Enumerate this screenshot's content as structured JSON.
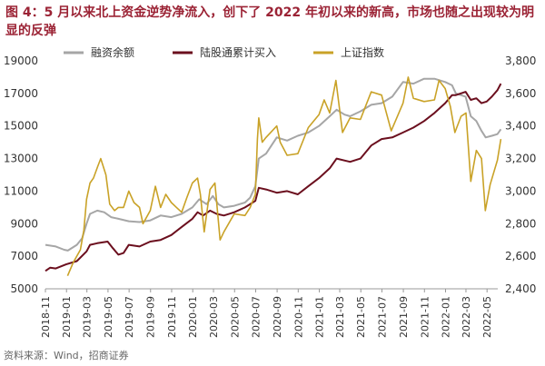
{
  "figure": {
    "title": "图 4：5 月以来北上资金逆势净流入，创下了 2022 年初以来的新高，市场也随之出现较为明显的反弹",
    "source": "资料来源：Wind，招商证券"
  },
  "chart_data": {
    "type": "line",
    "title": "图 4：5 月以来北上资金逆势净流入，创下了 2022 年初以来的新高，市场也随之出现较为明显的反弹",
    "xlabel": "",
    "ylabel": "",
    "x_ticks": [
      "2018-11",
      "2019-01",
      "2019-03",
      "2019-05",
      "2019-07",
      "2019-09",
      "2019-11",
      "2020-01",
      "2020-03",
      "2020-05",
      "2020-07",
      "2020-09",
      "2020-11",
      "2021-01",
      "2021-03",
      "2021-05",
      "2021-07",
      "2021-09",
      "2021-11",
      "2022-01",
      "2022-03",
      "2022-05"
    ],
    "x_range": [
      "2018-11",
      "2022-06"
    ],
    "y_left": {
      "range": [
        5000,
        19000
      ],
      "ticks": [
        5000,
        7000,
        9000,
        11000,
        13000,
        15000,
        17000,
        19000
      ]
    },
    "y_right": {
      "range": [
        2400,
        3800
      ],
      "ticks": [
        "2,400",
        "2,600",
        "2,800",
        "3,000",
        "3,200",
        "3,400",
        "3,600",
        "3,800"
      ],
      "tick_values": [
        2400,
        2600,
        2800,
        3000,
        3200,
        3400,
        3600,
        3800
      ]
    },
    "legend_position": "top",
    "grid": false,
    "series": [
      {
        "name": "融资余额",
        "axis": "left",
        "color": "#a6a6a6",
        "points": [
          [
            "2018-11-01",
            7700
          ],
          [
            "2018-12-01",
            7600
          ],
          [
            "2018-12-25",
            7400
          ],
          [
            "2019-01-05",
            7350
          ],
          [
            "2019-01-31",
            7700
          ],
          [
            "2019-02-15",
            8100
          ],
          [
            "2019-02-28",
            9000
          ],
          [
            "2019-03-10",
            9600
          ],
          [
            "2019-03-31",
            9800
          ],
          [
            "2019-04-20",
            9700
          ],
          [
            "2019-05-10",
            9400
          ],
          [
            "2019-05-31",
            9300
          ],
          [
            "2019-06-30",
            9150
          ],
          [
            "2019-07-31",
            9100
          ],
          [
            "2019-08-31",
            9200
          ],
          [
            "2019-09-30",
            9500
          ],
          [
            "2019-10-31",
            9400
          ],
          [
            "2019-11-30",
            9600
          ],
          [
            "2019-12-31",
            10000
          ],
          [
            "2020-01-20",
            10500
          ],
          [
            "2020-02-10",
            10200
          ],
          [
            "2020-02-28",
            10700
          ],
          [
            "2020-03-15",
            10200
          ],
          [
            "2020-03-31",
            10000
          ],
          [
            "2020-04-30",
            10100
          ],
          [
            "2020-05-31",
            10300
          ],
          [
            "2020-06-15",
            10600
          ],
          [
            "2020-06-30",
            11300
          ],
          [
            "2020-07-10",
            13000
          ],
          [
            "2020-07-31",
            13300
          ],
          [
            "2020-08-31",
            14300
          ],
          [
            "2020-09-30",
            14100
          ],
          [
            "2020-10-31",
            14400
          ],
          [
            "2020-11-30",
            14600
          ],
          [
            "2020-12-31",
            15000
          ],
          [
            "2021-01-31",
            15600
          ],
          [
            "2021-02-20",
            16000
          ],
          [
            "2021-03-15",
            15700
          ],
          [
            "2021-03-31",
            15600
          ],
          [
            "2021-04-30",
            15900
          ],
          [
            "2021-05-31",
            16300
          ],
          [
            "2021-06-30",
            16400
          ],
          [
            "2021-07-31",
            16800
          ],
          [
            "2021-08-31",
            17700
          ],
          [
            "2021-09-30",
            17600
          ],
          [
            "2021-10-31",
            17900
          ],
          [
            "2021-11-30",
            17900
          ],
          [
            "2021-12-31",
            17700
          ],
          [
            "2022-01-20",
            17500
          ],
          [
            "2022-01-31",
            17000
          ],
          [
            "2022-02-28",
            16800
          ],
          [
            "2022-03-15",
            15600
          ],
          [
            "2022-03-31",
            15300
          ],
          [
            "2022-04-15",
            14700
          ],
          [
            "2022-04-27",
            14300
          ],
          [
            "2022-05-15",
            14400
          ],
          [
            "2022-05-31",
            14500
          ],
          [
            "2022-06-10",
            14800
          ]
        ]
      },
      {
        "name": "陆股通累计买入",
        "axis": "left",
        "color": "#6b0f1e",
        "points": [
          [
            "2018-11-01",
            6100
          ],
          [
            "2018-11-15",
            6300
          ],
          [
            "2018-12-01",
            6250
          ],
          [
            "2018-12-31",
            6500
          ],
          [
            "2019-01-31",
            6700
          ],
          [
            "2019-02-28",
            7300
          ],
          [
            "2019-03-10",
            7700
          ],
          [
            "2019-03-31",
            7800
          ],
          [
            "2019-04-30",
            7900
          ],
          [
            "2019-05-15",
            7500
          ],
          [
            "2019-05-31",
            7100
          ],
          [
            "2019-06-15",
            7200
          ],
          [
            "2019-06-30",
            7700
          ],
          [
            "2019-07-31",
            7600
          ],
          [
            "2019-08-31",
            7900
          ],
          [
            "2019-09-30",
            8000
          ],
          [
            "2019-10-31",
            8300
          ],
          [
            "2019-11-30",
            8800
          ],
          [
            "2019-12-31",
            9300
          ],
          [
            "2020-01-15",
            9700
          ],
          [
            "2020-01-31",
            9500
          ],
          [
            "2020-02-20",
            9800
          ],
          [
            "2020-03-10",
            9600
          ],
          [
            "2020-03-31",
            9500
          ],
          [
            "2020-04-30",
            9700
          ],
          [
            "2020-05-31",
            10000
          ],
          [
            "2020-06-30",
            10400
          ],
          [
            "2020-07-10",
            11200
          ],
          [
            "2020-07-31",
            11100
          ],
          [
            "2020-08-31",
            10900
          ],
          [
            "2020-09-30",
            11000
          ],
          [
            "2020-10-31",
            10800
          ],
          [
            "2020-11-30",
            11300
          ],
          [
            "2020-12-31",
            11800
          ],
          [
            "2021-01-31",
            12400
          ],
          [
            "2021-02-20",
            13000
          ],
          [
            "2021-03-31",
            12800
          ],
          [
            "2021-04-30",
            13000
          ],
          [
            "2021-05-31",
            13800
          ],
          [
            "2021-06-30",
            14200
          ],
          [
            "2021-07-31",
            14300
          ],
          [
            "2021-08-31",
            14600
          ],
          [
            "2021-09-30",
            14900
          ],
          [
            "2021-10-31",
            15300
          ],
          [
            "2021-11-30",
            15800
          ],
          [
            "2021-12-31",
            16400
          ],
          [
            "2022-01-20",
            16900
          ],
          [
            "2022-01-31",
            16900
          ],
          [
            "2022-02-28",
            17100
          ],
          [
            "2022-03-15",
            16600
          ],
          [
            "2022-03-31",
            16700
          ],
          [
            "2022-04-15",
            16400
          ],
          [
            "2022-04-30",
            16500
          ],
          [
            "2022-05-15",
            16800
          ],
          [
            "2022-05-31",
            17200
          ],
          [
            "2022-06-10",
            17600
          ]
        ]
      },
      {
        "name": "上证指数",
        "axis": "right",
        "color": "#c9a227",
        "points": [
          [
            "2019-01-04",
            2480
          ],
          [
            "2019-01-20",
            2560
          ],
          [
            "2019-02-10",
            2640
          ],
          [
            "2019-02-20",
            2760
          ],
          [
            "2019-02-28",
            2950
          ],
          [
            "2019-03-10",
            3050
          ],
          [
            "2019-03-20",
            3080
          ],
          [
            "2019-04-01",
            3150
          ],
          [
            "2019-04-10",
            3200
          ],
          [
            "2019-04-25",
            3100
          ],
          [
            "2019-05-06",
            2920
          ],
          [
            "2019-05-20",
            2880
          ],
          [
            "2019-05-31",
            2900
          ],
          [
            "2019-06-15",
            2900
          ],
          [
            "2019-06-30",
            3000
          ],
          [
            "2019-07-15",
            2930
          ],
          [
            "2019-07-31",
            2900
          ],
          [
            "2019-08-10",
            2800
          ],
          [
            "2019-08-31",
            2880
          ],
          [
            "2019-09-15",
            3030
          ],
          [
            "2019-09-30",
            2900
          ],
          [
            "2019-10-15",
            2980
          ],
          [
            "2019-10-31",
            2930
          ],
          [
            "2019-11-15",
            2900
          ],
          [
            "2019-11-30",
            2870
          ],
          [
            "2019-12-15",
            2960
          ],
          [
            "2019-12-31",
            3050
          ],
          [
            "2020-01-15",
            3080
          ],
          [
            "2020-01-23",
            2980
          ],
          [
            "2020-02-03",
            2750
          ],
          [
            "2020-02-20",
            3010
          ],
          [
            "2020-03-05",
            3050
          ],
          [
            "2020-03-20",
            2700
          ],
          [
            "2020-03-31",
            2750
          ],
          [
            "2020-04-30",
            2860
          ],
          [
            "2020-05-31",
            2850
          ],
          [
            "2020-06-15",
            2900
          ],
          [
            "2020-06-30",
            2980
          ],
          [
            "2020-07-06",
            3320
          ],
          [
            "2020-07-10",
            3450
          ],
          [
            "2020-07-20",
            3300
          ],
          [
            "2020-07-31",
            3330
          ],
          [
            "2020-08-31",
            3400
          ],
          [
            "2020-09-10",
            3300
          ],
          [
            "2020-09-30",
            3220
          ],
          [
            "2020-10-31",
            3230
          ],
          [
            "2020-11-30",
            3390
          ],
          [
            "2020-12-31",
            3470
          ],
          [
            "2021-01-15",
            3560
          ],
          [
            "2021-01-31",
            3480
          ],
          [
            "2021-02-18",
            3680
          ],
          [
            "2021-03-09",
            3360
          ],
          [
            "2021-03-31",
            3450
          ],
          [
            "2021-04-30",
            3440
          ],
          [
            "2021-05-31",
            3610
          ],
          [
            "2021-06-30",
            3590
          ],
          [
            "2021-07-28",
            3370
          ],
          [
            "2021-08-31",
            3540
          ],
          [
            "2021-09-15",
            3700
          ],
          [
            "2021-09-30",
            3570
          ],
          [
            "2021-10-31",
            3550
          ],
          [
            "2021-11-30",
            3560
          ],
          [
            "2021-12-13",
            3680
          ],
          [
            "2021-12-31",
            3630
          ],
          [
            "2022-01-15",
            3520
          ],
          [
            "2022-01-28",
            3360
          ],
          [
            "2022-02-15",
            3460
          ],
          [
            "2022-03-01",
            3480
          ],
          [
            "2022-03-15",
            3060
          ],
          [
            "2022-03-31",
            3250
          ],
          [
            "2022-04-15",
            3200
          ],
          [
            "2022-04-26",
            2880
          ],
          [
            "2022-05-10",
            3040
          ],
          [
            "2022-05-31",
            3190
          ],
          [
            "2022-06-10",
            3320
          ]
        ]
      }
    ]
  }
}
